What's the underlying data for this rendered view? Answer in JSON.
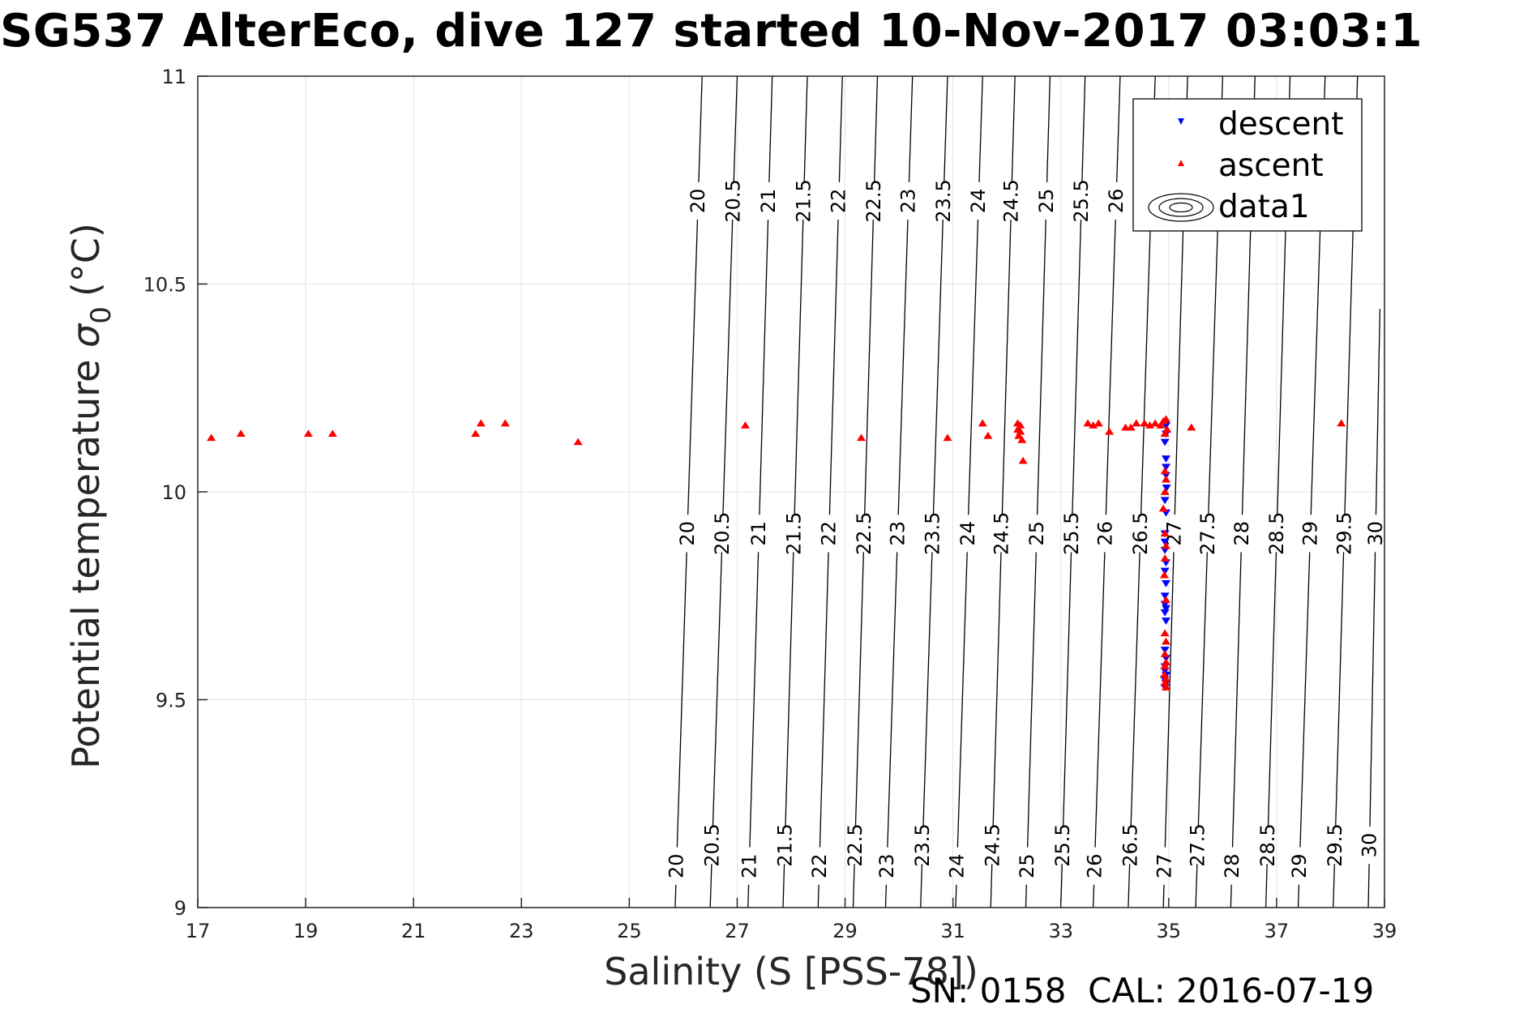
{
  "chart_data": {
    "type": "scatter",
    "title": "SG537 AlterEco, dive 127 started 10-Nov-2017 03:03:1",
    "xlabel": "Salinity (S [PSS-78])",
    "ylabel_main": "Potential temperature",
    "ylabel_symbol": "σ",
    "ylabel_subscript": "0",
    "ylabel_unit": "(°C)",
    "xlim": [
      17,
      39
    ],
    "ylim": [
      9,
      11
    ],
    "xticks": [
      17,
      19,
      21,
      23,
      25,
      27,
      29,
      31,
      33,
      35,
      37,
      39
    ],
    "yticks": [
      9,
      9.5,
      10,
      10.5,
      11
    ],
    "ytick_labels": [
      "9",
      "9.5",
      "10",
      "10.5",
      "11"
    ],
    "grid": true,
    "legend_position": "top-right",
    "legend": [
      "descent",
      "ascent",
      "data1"
    ],
    "footer_note": "SN: 0158  CAL: 2016-07-19",
    "colors": {
      "descent": "#0000ff",
      "ascent": "#ff0000",
      "contour": "#000000"
    },
    "contours": [
      {
        "label": "20",
        "x_bottom": 25.85,
        "x_top": 26.35,
        "labels_at_y": [
          9.1,
          9.9,
          10.7
        ]
      },
      {
        "label": "20.5",
        "x_bottom": 26.5,
        "x_top": 27.0,
        "labels_at_y": [
          9.15,
          9.9,
          10.7
        ]
      },
      {
        "label": "21",
        "x_bottom": 27.2,
        "x_top": 27.65,
        "labels_at_y": [
          9.1,
          9.9,
          10.7
        ]
      },
      {
        "label": "21.5",
        "x_bottom": 27.85,
        "x_top": 28.3,
        "labels_at_y": [
          9.15,
          9.9,
          10.7
        ]
      },
      {
        "label": "22",
        "x_bottom": 28.5,
        "x_top": 28.95,
        "labels_at_y": [
          9.1,
          9.9,
          10.7
        ]
      },
      {
        "label": "22.5",
        "x_bottom": 29.15,
        "x_top": 29.6,
        "labels_at_y": [
          9.15,
          9.9,
          10.7
        ]
      },
      {
        "label": "23",
        "x_bottom": 29.75,
        "x_top": 30.25,
        "labels_at_y": [
          9.1,
          9.9,
          10.7
        ]
      },
      {
        "label": "23.5",
        "x_bottom": 30.4,
        "x_top": 30.9,
        "labels_at_y": [
          9.15,
          9.9,
          10.7
        ]
      },
      {
        "label": "24",
        "x_bottom": 31.05,
        "x_top": 31.55,
        "labels_at_y": [
          9.1,
          9.9,
          10.7
        ]
      },
      {
        "label": "24.5",
        "x_bottom": 31.7,
        "x_top": 32.15,
        "labels_at_y": [
          9.15,
          9.9,
          10.7
        ]
      },
      {
        "label": "25",
        "x_bottom": 32.35,
        "x_top": 32.8,
        "labels_at_y": [
          9.1,
          9.9,
          10.7
        ]
      },
      {
        "label": "25.5",
        "x_bottom": 33.0,
        "x_top": 33.45,
        "labels_at_y": [
          9.15,
          9.9,
          10.7
        ]
      },
      {
        "label": "26",
        "x_bottom": 33.6,
        "x_top": 34.1,
        "labels_at_y": [
          9.1,
          9.9,
          10.7
        ]
      },
      {
        "label": "26.5",
        "x_bottom": 34.25,
        "x_top": 34.75,
        "labels_at_y": [
          9.15,
          9.9
        ]
      },
      {
        "label": "27",
        "x_bottom": 34.9,
        "x_top": 35.35,
        "labels_at_y": [
          9.1,
          9.9
        ]
      },
      {
        "label": "27.5",
        "x_bottom": 35.5,
        "x_top": 36.0,
        "labels_at_y": [
          9.15,
          9.9
        ]
      },
      {
        "label": "28",
        "x_bottom": 36.15,
        "x_top": 36.6,
        "labels_at_y": [
          9.1,
          9.9
        ]
      },
      {
        "label": "28.5",
        "x_bottom": 36.8,
        "x_top": 37.25,
        "labels_at_y": [
          9.15,
          9.9
        ]
      },
      {
        "label": "29",
        "x_bottom": 37.4,
        "x_top": 37.9,
        "labels_at_y": [
          9.1,
          9.9
        ]
      },
      {
        "label": "29.5",
        "x_bottom": 38.05,
        "x_top": 38.5,
        "labels_at_y": [
          9.15,
          9.9
        ]
      },
      {
        "label": "30",
        "x_bottom": 38.7,
        "x_top": 39.0,
        "labels_at_y": [
          9.15,
          9.9
        ],
        "y_top": 10.44
      }
    ],
    "series": [
      {
        "name": "descent",
        "marker": "triangle-down",
        "points": [
          [
            34.95,
            10.16
          ],
          [
            34.95,
            10.14
          ],
          [
            34.93,
            10.12
          ],
          [
            34.95,
            10.08
          ],
          [
            34.95,
            10.06
          ],
          [
            34.95,
            10.04
          ],
          [
            34.96,
            10.01
          ],
          [
            34.93,
            9.98
          ],
          [
            34.95,
            9.95
          ],
          [
            34.93,
            9.9
          ],
          [
            34.93,
            9.88
          ],
          [
            34.93,
            9.86
          ],
          [
            34.95,
            9.83
          ],
          [
            34.93,
            9.81
          ],
          [
            34.95,
            9.78
          ],
          [
            34.93,
            9.75
          ],
          [
            34.93,
            9.73
          ],
          [
            34.95,
            9.72
          ],
          [
            34.93,
            9.71
          ],
          [
            34.95,
            9.69
          ],
          [
            34.93,
            9.62
          ],
          [
            34.95,
            9.6
          ],
          [
            34.93,
            9.58
          ],
          [
            34.93,
            9.57
          ],
          [
            34.95,
            9.56
          ],
          [
            34.92,
            9.55
          ],
          [
            34.95,
            9.54
          ],
          [
            34.93,
            9.53
          ]
        ]
      },
      {
        "name": "ascent",
        "marker": "triangle-up",
        "points": [
          [
            17.25,
            10.13
          ],
          [
            17.8,
            10.14
          ],
          [
            19.05,
            10.14
          ],
          [
            19.5,
            10.14
          ],
          [
            22.15,
            10.14
          ],
          [
            22.25,
            10.165
          ],
          [
            22.7,
            10.165
          ],
          [
            24.05,
            10.12
          ],
          [
            27.15,
            10.16
          ],
          [
            29.3,
            10.13
          ],
          [
            30.9,
            10.13
          ],
          [
            31.55,
            10.165
          ],
          [
            31.65,
            10.135
          ],
          [
            32.2,
            10.165
          ],
          [
            32.25,
            10.16
          ],
          [
            32.2,
            10.15
          ],
          [
            32.25,
            10.145
          ],
          [
            32.22,
            10.135
          ],
          [
            32.28,
            10.125
          ],
          [
            32.3,
            10.075
          ],
          [
            33.5,
            10.165
          ],
          [
            33.6,
            10.16
          ],
          [
            33.7,
            10.165
          ],
          [
            33.9,
            10.145
          ],
          [
            34.2,
            10.155
          ],
          [
            34.3,
            10.155
          ],
          [
            34.4,
            10.165
          ],
          [
            34.55,
            10.165
          ],
          [
            34.65,
            10.16
          ],
          [
            34.75,
            10.165
          ],
          [
            34.85,
            10.16
          ],
          [
            34.9,
            10.17
          ],
          [
            34.95,
            10.175
          ],
          [
            34.97,
            10.15
          ],
          [
            34.93,
            10.14
          ],
          [
            35.42,
            10.155
          ],
          [
            38.2,
            10.165
          ],
          [
            34.93,
            10.05
          ],
          [
            34.95,
            10.03
          ],
          [
            34.93,
            10.0
          ],
          [
            34.9,
            9.96
          ],
          [
            34.93,
            9.9
          ],
          [
            34.95,
            9.87
          ],
          [
            34.93,
            9.84
          ],
          [
            34.92,
            9.8
          ],
          [
            34.95,
            9.74
          ],
          [
            34.93,
            9.66
          ],
          [
            34.95,
            9.64
          ],
          [
            34.93,
            9.61
          ],
          [
            34.95,
            9.59
          ],
          [
            34.93,
            9.58
          ],
          [
            34.92,
            9.56
          ],
          [
            34.95,
            9.55
          ],
          [
            34.93,
            9.54
          ],
          [
            34.95,
            9.53
          ]
        ]
      }
    ]
  }
}
